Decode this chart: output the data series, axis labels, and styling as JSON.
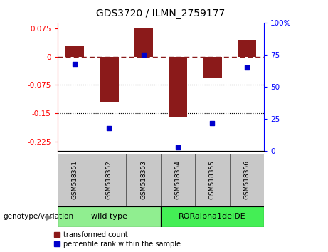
{
  "title": "GDS3720 / ILMN_2759177",
  "samples": [
    "GSM518351",
    "GSM518352",
    "GSM518353",
    "GSM518354",
    "GSM518355",
    "GSM518356"
  ],
  "bar_values": [
    0.03,
    -0.12,
    0.075,
    -0.16,
    -0.055,
    0.045
  ],
  "percentile_values": [
    68,
    18,
    75,
    3,
    22,
    65
  ],
  "bar_color": "#8B1A1A",
  "dot_color": "#0000CC",
  "ylim_left": [
    -0.25,
    0.09
  ],
  "ylim_right": [
    0,
    100
  ],
  "yticks_left": [
    0.075,
    0,
    -0.075,
    -0.15,
    -0.225
  ],
  "yticks_right": [
    100,
    75,
    50,
    25,
    0
  ],
  "hline_y": 0,
  "dotted_lines": [
    -0.075,
    -0.15
  ],
  "bar_width": 0.55,
  "wt_color": "#90EE90",
  "ror_color": "#44EE55",
  "label_bg": "#C8C8C8",
  "legend_labels": [
    "transformed count",
    "percentile rank within the sample"
  ],
  "genotype_label": "genotype/variation",
  "background_color": "#ffffff"
}
